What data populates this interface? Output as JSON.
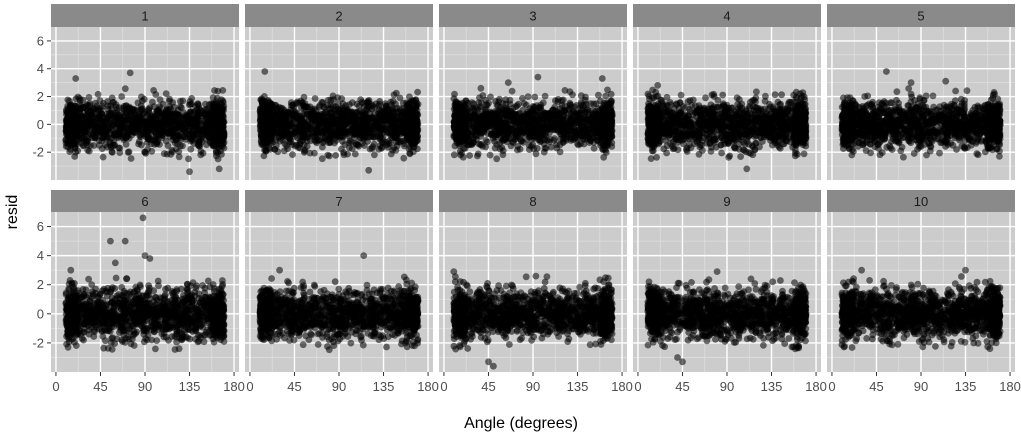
{
  "chart_data": {
    "type": "scatter",
    "facets": [
      "1",
      "2",
      "3",
      "4",
      "5",
      "6",
      "7",
      "8",
      "9",
      "10"
    ],
    "layout": {
      "rows": 2,
      "cols": 5
    },
    "xlabel": "Angle (degrees)",
    "ylabel": "resid",
    "xlim": [
      -5,
      185
    ],
    "ylim": [
      -4,
      7
    ],
    "x_ticks": [
      0,
      45,
      90,
      135,
      180
    ],
    "x_tick_labels": [
      "0",
      "45",
      "90",
      "135",
      "180"
    ],
    "y_ticks": [
      -2,
      0,
      2,
      4,
      6
    ],
    "y_tick_labels": [
      "-2",
      "0",
      "2",
      "4",
      "6"
    ],
    "x_data_range": [
      10,
      170
    ],
    "point_count_per_facet": 1500,
    "residual_sd_approx": 0.85,
    "outliers": [
      {
        "facet": "1",
        "points": [
          [
            75,
            3.7
          ],
          [
            165,
            -3.2
          ],
          [
            135,
            -3.4
          ],
          [
            20,
            3.3
          ]
        ]
      },
      {
        "facet": "2",
        "points": [
          [
            15,
            3.8
          ],
          [
            120,
            -3.3
          ]
        ]
      },
      {
        "facet": "3",
        "points": [
          [
            95,
            3.4
          ],
          [
            160,
            3.3
          ],
          [
            65,
            3.0
          ]
        ]
      },
      {
        "facet": "4",
        "points": [
          [
            110,
            -3.2
          ],
          [
            20,
            2.8
          ]
        ]
      },
      {
        "facet": "5",
        "points": [
          [
            55,
            3.8
          ],
          [
            115,
            3.1
          ],
          [
            80,
            3.0
          ]
        ]
      },
      {
        "facet": "6",
        "points": [
          [
            88,
            6.6
          ],
          [
            55,
            5.0
          ],
          [
            70,
            5.0
          ],
          [
            90,
            4.0
          ],
          [
            60,
            3.5
          ],
          [
            95,
            3.8
          ],
          [
            15,
            3.0
          ]
        ]
      },
      {
        "facet": "7",
        "points": [
          [
            115,
            4.0
          ],
          [
            30,
            3.0
          ]
        ]
      },
      {
        "facet": "8",
        "points": [
          [
            50,
            -3.6
          ],
          [
            45,
            -3.3
          ],
          [
            10,
            2.9
          ]
        ]
      },
      {
        "facet": "9",
        "points": [
          [
            45,
            -3.3
          ],
          [
            40,
            -3.0
          ],
          [
            80,
            2.9
          ]
        ]
      },
      {
        "facet": "10",
        "points": [
          [
            30,
            3.0
          ],
          [
            135,
            3.0
          ]
        ]
      }
    ],
    "colors": {
      "panel_background": "#cccccc",
      "grid_major": "#ffffff",
      "grid_minor": "#dedede",
      "strip_background": "#8a8a8a",
      "point": "#000000"
    },
    "point_alpha": 0.55,
    "grid": true,
    "legend": "none"
  }
}
